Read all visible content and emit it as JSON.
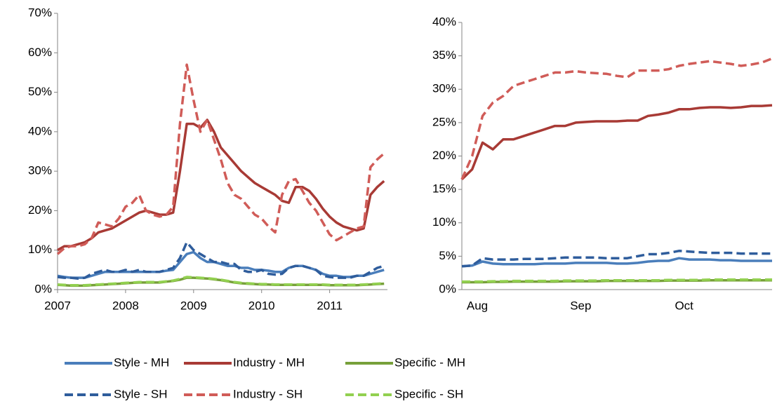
{
  "chart_data": [
    {
      "type": "line",
      "x": [
        2007.0,
        2007.1,
        2007.2,
        2007.3,
        2007.4,
        2007.5,
        2007.6,
        2007.7,
        2007.8,
        2007.9,
        2008.0,
        2008.1,
        2008.2,
        2008.3,
        2008.4,
        2008.5,
        2008.6,
        2008.7,
        2008.8,
        2008.9,
        2009.0,
        2009.1,
        2009.2,
        2009.3,
        2009.4,
        2009.5,
        2009.6,
        2009.7,
        2009.8,
        2009.9,
        2010.0,
        2010.1,
        2010.2,
        2010.3,
        2010.4,
        2010.5,
        2010.6,
        2010.7,
        2010.8,
        2010.9,
        2011.0,
        2011.1,
        2011.2,
        2011.3,
        2011.4,
        2011.5,
        2011.6,
        2011.7,
        2011.8
      ],
      "xlim": [
        2007,
        2011.85
      ],
      "xticks": [
        2007,
        2008,
        2009,
        2010,
        2011
      ],
      "ylim": [
        0,
        70
      ],
      "yticks": [
        {
          "value": 0,
          "label": "0%"
        },
        {
          "value": 10,
          "label": "10%"
        },
        {
          "value": 20,
          "label": "20%"
        },
        {
          "value": 30,
          "label": "30%"
        },
        {
          "value": 40,
          "label": "40%"
        },
        {
          "value": 50,
          "label": "50%"
        },
        {
          "value": 60,
          "label": "60%"
        },
        {
          "value": 70,
          "label": "70%"
        }
      ],
      "series": [
        {
          "name": "Style - MH",
          "color": "#4a7ebb",
          "dash": false,
          "values": [
            3.5,
            3.2,
            3,
            3,
            3,
            3.5,
            4,
            4.5,
            4.5,
            4.5,
            4.5,
            4.5,
            4.5,
            4.5,
            4.5,
            4.5,
            4.8,
            5,
            7,
            9,
            9.5,
            8,
            7,
            7,
            6.5,
            6,
            6,
            5.5,
            5.5,
            5,
            5,
            4.8,
            4.5,
            4.5,
            5.5,
            6,
            6,
            5.5,
            5,
            4,
            3.5,
            3.5,
            3.2,
            3.2,
            3.5,
            3.5,
            4,
            4.5,
            5
          ]
        },
        {
          "name": "Industry - MH",
          "color": "#a83a35",
          "dash": false,
          "values": [
            10,
            11,
            11,
            11.5,
            12,
            13,
            14.5,
            15,
            15.5,
            16.5,
            17.5,
            18.5,
            19.5,
            20,
            19.5,
            19,
            19,
            19.5,
            30,
            42,
            42,
            41,
            43,
            40,
            36,
            34,
            32,
            30,
            28.5,
            27,
            26,
            25,
            24,
            22.5,
            22,
            26,
            26,
            25,
            23,
            20.5,
            18.5,
            17,
            16,
            15.5,
            15,
            15.5,
            24,
            26,
            27.5
          ]
        },
        {
          "name": "Specific - MH",
          "color": "#77a03a",
          "dash": false,
          "values": [
            1.2,
            1.1,
            1,
            1,
            1,
            1.1,
            1.2,
            1.3,
            1.4,
            1.5,
            1.6,
            1.7,
            1.8,
            1.8,
            1.8,
            1.8,
            2,
            2.2,
            2.5,
            3,
            3,
            2.9,
            2.8,
            2.6,
            2.4,
            2.1,
            1.8,
            1.6,
            1.5,
            1.4,
            1.3,
            1.3,
            1.2,
            1.2,
            1.2,
            1.2,
            1.2,
            1.2,
            1.2,
            1.2,
            1.1,
            1.1,
            1.1,
            1.1,
            1.1,
            1.2,
            1.3,
            1.4,
            1.5
          ]
        },
        {
          "name": "Style - SH",
          "color": "#2f5d9c",
          "dash": true,
          "values": [
            3.2,
            3,
            3,
            2.8,
            3,
            4,
            4.5,
            5,
            4.5,
            4.5,
            5,
            4.5,
            5,
            4.5,
            4.5,
            4.5,
            5,
            5.5,
            8,
            12,
            10,
            9,
            8,
            7,
            7,
            6.5,
            6.5,
            5,
            4.5,
            4.5,
            5,
            4,
            3.8,
            4,
            5.5,
            6,
            6,
            5.5,
            5,
            3.5,
            3.2,
            3,
            3,
            3,
            3.5,
            3.5,
            4.5,
            5.5,
            6
          ]
        },
        {
          "name": "Industry - SH",
          "color": "#d05c58",
          "dash": true,
          "values": [
            9,
            10.5,
            11,
            11,
            11.5,
            13,
            17,
            16.5,
            16,
            18,
            21,
            22,
            24,
            20,
            19,
            18.5,
            19,
            21,
            42,
            57,
            48,
            40,
            43,
            38,
            33,
            27,
            24,
            23,
            21,
            19,
            18,
            16,
            14.5,
            24,
            27.5,
            28,
            25,
            22,
            20,
            17,
            14,
            12.5,
            13.5,
            14.5,
            15.5,
            16,
            31,
            33,
            34.5
          ]
        },
        {
          "name": "Specific - SH",
          "color": "#92d050",
          "dash": true,
          "values": [
            1.3,
            1.2,
            1.1,
            1.1,
            1.1,
            1.2,
            1.3,
            1.4,
            1.5,
            1.6,
            1.7,
            1.8,
            1.9,
            1.9,
            1.9,
            1.9,
            2.1,
            2.3,
            2.7,
            3.2,
            3.1,
            3,
            2.9,
            2.7,
            2.5,
            2.2,
            1.9,
            1.7,
            1.6,
            1.5,
            1.4,
            1.4,
            1.3,
            1.3,
            1.3,
            1.3,
            1.3,
            1.3,
            1.3,
            1.3,
            1.2,
            1.2,
            1.2,
            1.2,
            1.2,
            1.3,
            1.4,
            1.5,
            1.6
          ]
        }
      ]
    },
    {
      "type": "line",
      "categories": [
        "Aug",
        null,
        null,
        null,
        null,
        null,
        null,
        null,
        null,
        null,
        "Sep",
        null,
        null,
        null,
        null,
        null,
        null,
        null,
        null,
        null,
        "Oct",
        null,
        null,
        null,
        null,
        null,
        null,
        null,
        null,
        null,
        null
      ],
      "ylim": [
        0,
        40
      ],
      "yticks": [
        {
          "value": 0,
          "label": "0%"
        },
        {
          "value": 5,
          "label": "5%"
        },
        {
          "value": 10,
          "label": "10%"
        },
        {
          "value": 15,
          "label": "15%"
        },
        {
          "value": 20,
          "label": "20%"
        },
        {
          "value": 25,
          "label": "25%"
        },
        {
          "value": 30,
          "label": "30%"
        },
        {
          "value": 35,
          "label": "35%"
        },
        {
          "value": 40,
          "label": "40%"
        }
      ],
      "series": [
        {
          "color": "#4a7ebb",
          "dash": false,
          "values": [
            3.5,
            3.6,
            4.2,
            3.9,
            3.8,
            3.8,
            3.8,
            3.8,
            3.9,
            3.9,
            3.9,
            4,
            4,
            4,
            4,
            3.9,
            3.9,
            4,
            4.2,
            4.3,
            4.3,
            4.7,
            4.5,
            4.5,
            4.5,
            4.4,
            4.4,
            4.3,
            4.3,
            4.3,
            4.3
          ]
        },
        {
          "color": "#a83a35",
          "dash": false,
          "values": [
            16.5,
            18,
            22,
            21,
            22.5,
            22.5,
            23,
            23.5,
            24,
            24.5,
            24.5,
            25,
            25.1,
            25.2,
            25.2,
            25.2,
            25.3,
            25.3,
            26,
            26.2,
            26.5,
            27,
            27,
            27.2,
            27.3,
            27.3,
            27.2,
            27.3,
            27.5,
            27.5,
            27.6
          ]
        },
        {
          "color": "#77a03a",
          "dash": false,
          "values": [
            1.1,
            1.1,
            1.1,
            1.15,
            1.15,
            1.2,
            1.2,
            1.2,
            1.2,
            1.2,
            1.25,
            1.25,
            1.25,
            1.25,
            1.3,
            1.3,
            1.3,
            1.3,
            1.3,
            1.3,
            1.35,
            1.35,
            1.35,
            1.35,
            1.4,
            1.4,
            1.4,
            1.4,
            1.4,
            1.4,
            1.4
          ]
        },
        {
          "color": "#2f5d9c",
          "dash": true,
          "values": [
            3.5,
            3.6,
            4.7,
            4.5,
            4.5,
            4.5,
            4.6,
            4.6,
            4.6,
            4.7,
            4.8,
            4.8,
            4.8,
            4.8,
            4.7,
            4.7,
            4.7,
            5,
            5.3,
            5.3,
            5.5,
            5.8,
            5.7,
            5.6,
            5.5,
            5.5,
            5.5,
            5.4,
            5.4,
            5.4,
            5.4
          ]
        },
        {
          "color": "#d05c58",
          "dash": true,
          "values": [
            16.5,
            20,
            26,
            28,
            29,
            30.5,
            31,
            31.5,
            32,
            32.5,
            32.5,
            32.7,
            32.5,
            32.4,
            32.3,
            32,
            31.8,
            32.8,
            32.8,
            32.8,
            33,
            33.5,
            33.8,
            34,
            34.2,
            34,
            33.8,
            33.5,
            33.7,
            34,
            34.6
          ]
        },
        {
          "color": "#92d050",
          "dash": true,
          "values": [
            1.2,
            1.2,
            1.2,
            1.25,
            1.25,
            1.3,
            1.3,
            1.3,
            1.3,
            1.3,
            1.35,
            1.35,
            1.35,
            1.35,
            1.4,
            1.4,
            1.4,
            1.4,
            1.4,
            1.4,
            1.45,
            1.45,
            1.45,
            1.45,
            1.5,
            1.5,
            1.5,
            1.5,
            1.5,
            1.5,
            1.5
          ]
        }
      ]
    }
  ]
}
